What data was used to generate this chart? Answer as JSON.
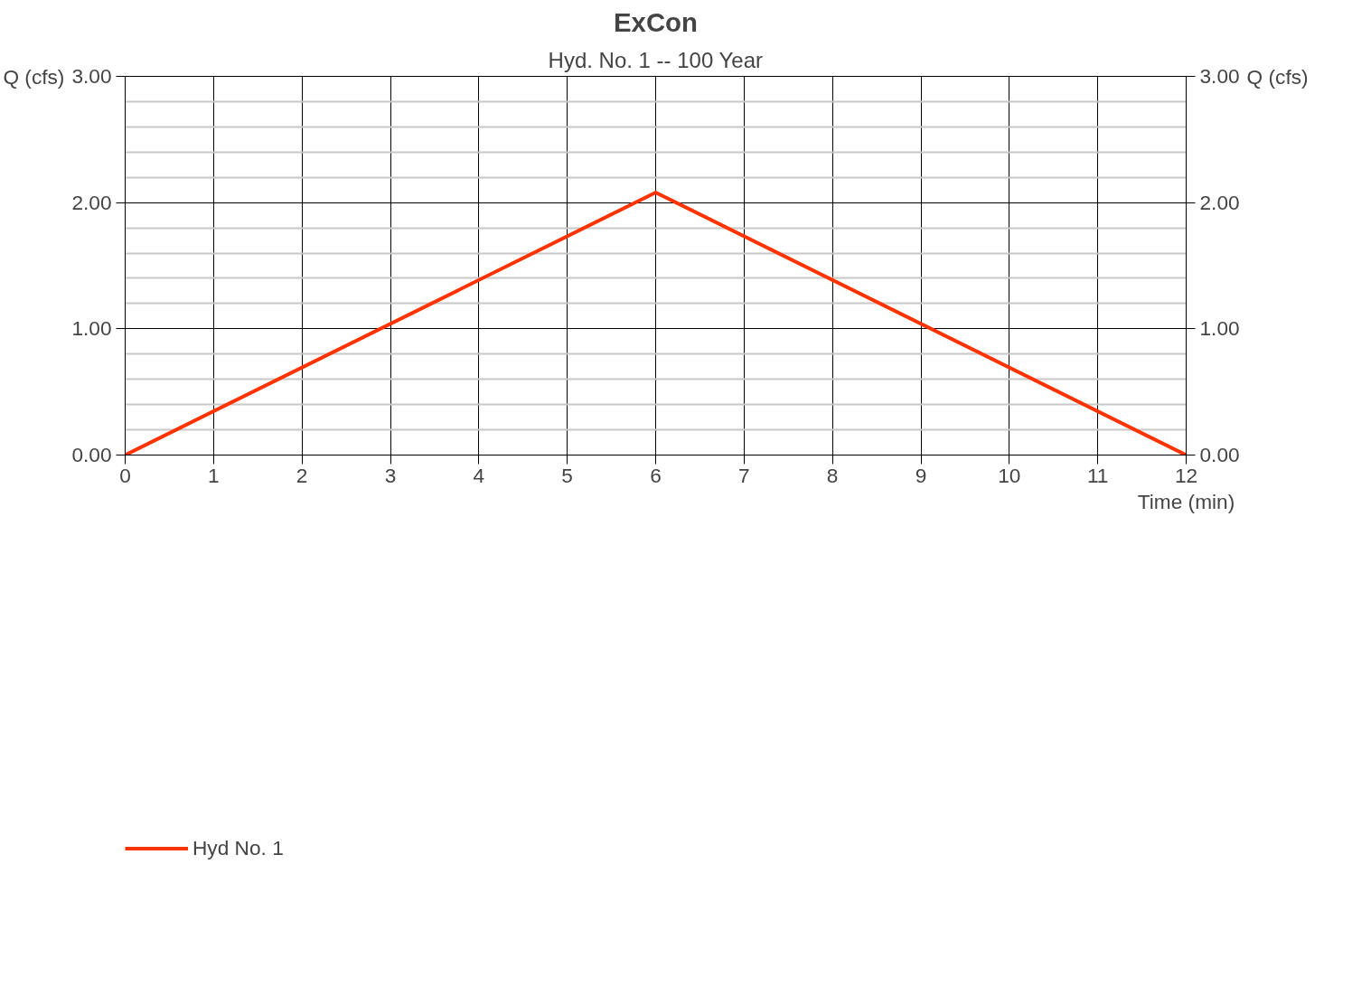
{
  "chart_data": {
    "type": "line",
    "title": "ExCon",
    "subtitle": "Hyd. No. 1 -- 100 Year",
    "xlabel": "Time (min)",
    "ylabel": "Q (cfs)",
    "y2label": "Q (cfs)",
    "x": [
      0,
      6,
      12
    ],
    "series": [
      {
        "name": "Hyd No. 1",
        "color": "#ff3300",
        "values": [
          0,
          2.08,
          0
        ]
      }
    ],
    "xlim": [
      0,
      12
    ],
    "xticks": [
      0,
      1,
      2,
      3,
      4,
      5,
      6,
      7,
      8,
      9,
      10,
      11,
      12
    ],
    "ylim": [
      0,
      3
    ],
    "yticks": [
      {
        "value": 0,
        "label": "0.00"
      },
      {
        "value": 0.2,
        "label": null
      },
      {
        "value": 0.4,
        "label": null
      },
      {
        "value": 0.6,
        "label": null
      },
      {
        "value": 0.8,
        "label": null
      },
      {
        "value": 1,
        "label": "1.00"
      },
      {
        "value": 1.2,
        "label": null
      },
      {
        "value": 1.4,
        "label": null
      },
      {
        "value": 1.6,
        "label": null
      },
      {
        "value": 1.8,
        "label": null
      },
      {
        "value": 2,
        "label": "2.00"
      },
      {
        "value": 2.2,
        "label": null
      },
      {
        "value": 2.4,
        "label": null
      },
      {
        "value": 2.6,
        "label": null
      },
      {
        "value": 2.8,
        "label": null
      },
      {
        "value": 3,
        "label": "3.00"
      }
    ],
    "y2lim": [
      0,
      3
    ],
    "y2ticks": [
      {
        "value": 0,
        "label": "0.00"
      },
      {
        "value": 1,
        "label": "1.00"
      },
      {
        "value": 2,
        "label": "2.00"
      },
      {
        "value": 3,
        "label": "3.00"
      }
    ],
    "grid": true,
    "legend": "bottom left",
    "marker": "none",
    "line_style": "solid"
  }
}
